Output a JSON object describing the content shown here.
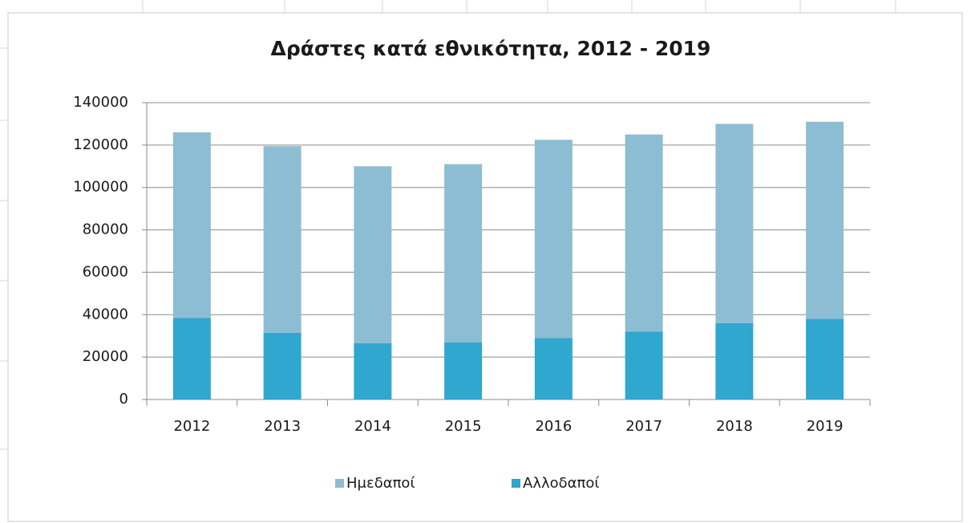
{
  "chart_data": {
    "type": "stacked-bar",
    "title": "Δράστες κατά εθνικότητα, 2012 - 2019",
    "categories": [
      "2012",
      "2013",
      "2014",
      "2015",
      "2016",
      "2017",
      "2018",
      "2019"
    ],
    "series": [
      {
        "name": "Ημεδαποί",
        "color": "#8dbdd3",
        "values": [
          87500,
          88000,
          83500,
          84000,
          93500,
          93000,
          94000,
          93000
        ]
      },
      {
        "name": "Αλλοδαποί",
        "color": "#2fa7cf",
        "values": [
          38500,
          31500,
          26500,
          27000,
          29000,
          32000,
          36000,
          38000
        ]
      }
    ],
    "ylim": [
      0,
      140000
    ],
    "yticks": [
      0,
      20000,
      40000,
      60000,
      80000,
      100000,
      120000,
      140000
    ],
    "grid": true,
    "legend": "bottom"
  }
}
